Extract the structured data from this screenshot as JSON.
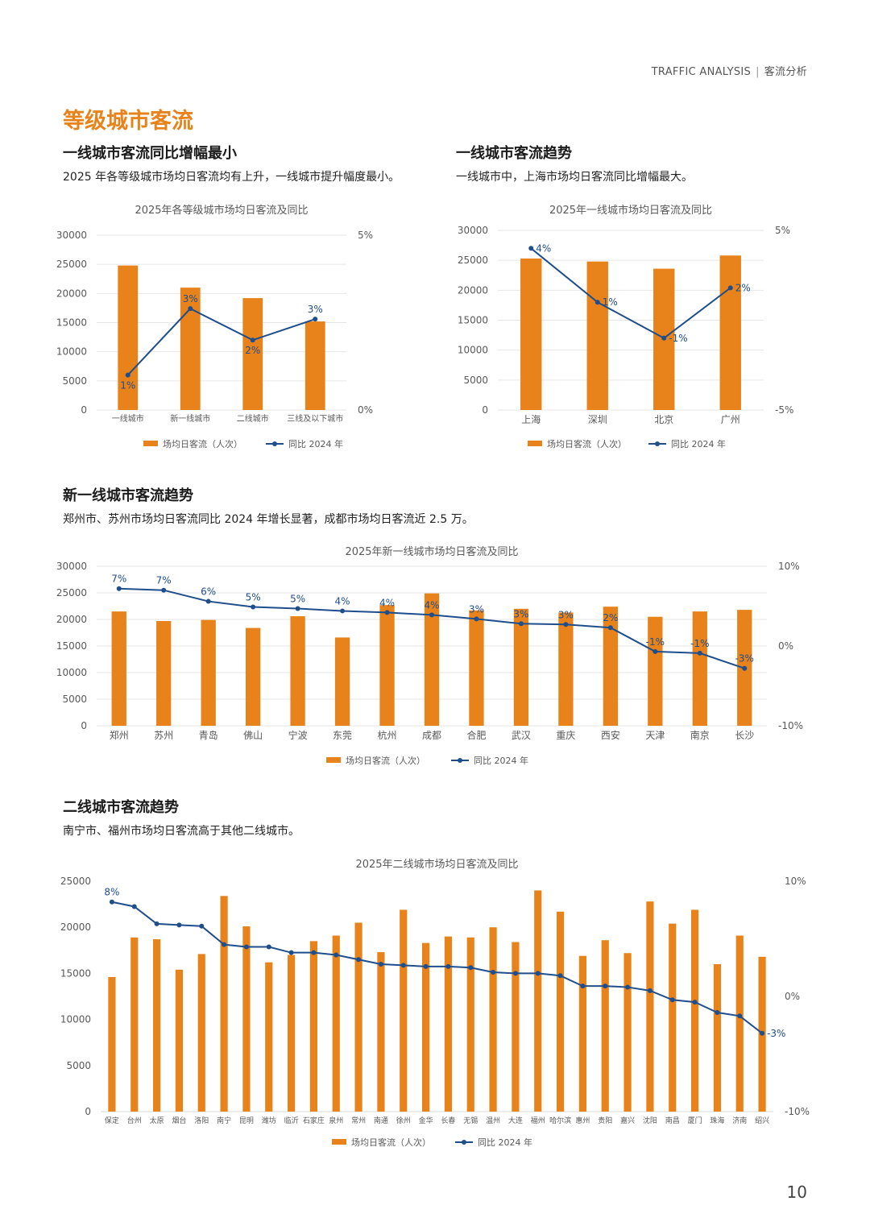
{
  "header": {
    "en": "TRAFFIC ANALYSIS",
    "sep": "|",
    "cn": "客流分析"
  },
  "page_title": "等级城市客流",
  "sections": {
    "tier": {
      "title": "一线城市客流同比增幅最小",
      "desc": "2025 年各等级城市场均日客流均有上升，一线城市提升幅度最小。"
    },
    "tier1": {
      "title": "一线城市客流趋势",
      "desc": "一线城市中，上海市场均日客流同比增幅最大。"
    },
    "newtier1": {
      "title": "新一线城市客流趋势",
      "desc": "郑州市、苏州市场均日客流同比 2024 年增长显著，成都市场均日客流近 2.5 万。"
    },
    "tier2": {
      "title": "二线城市客流趋势",
      "desc": "南宁市、福州市场均日客流高于其他二线城市。"
    }
  },
  "page_number": "10",
  "colors": {
    "bar": "#e8821a",
    "line": "#1f4e8c",
    "title_accent": "#e8821a",
    "grid": "#e6e6e6"
  },
  "chart_data": [
    {
      "id": "chart_tier",
      "type": "bar",
      "title": "2025年各等级城市场均日客流及同比",
      "categories": [
        "一线城市",
        "新一线城市",
        "二线城市",
        "三线及以下城市"
      ],
      "series": [
        {
          "name": "场均日客流（人次）",
          "type": "bar",
          "axis": "left",
          "values": [
            24800,
            21000,
            19200,
            15200
          ]
        },
        {
          "name": "同比 2024 年",
          "type": "line",
          "axis": "right",
          "values": [
            1.0,
            2.9,
            2.0,
            2.6
          ],
          "labels": [
            "1%",
            "3%",
            "2%",
            "3%"
          ],
          "label_pos": [
            "below",
            "above",
            "below",
            "above"
          ]
        }
      ],
      "ylim": [
        0,
        30000
      ],
      "yticks": [
        0,
        5000,
        10000,
        15000,
        20000,
        25000,
        30000
      ],
      "y2lim": [
        0,
        5
      ],
      "y2ticks": [
        {
          "v": 0,
          "t": "0%"
        },
        {
          "v": 5,
          "t": "5%"
        }
      ],
      "grid": true,
      "legend": "bottom"
    },
    {
      "id": "chart_tier1",
      "type": "bar",
      "title": "2025年一线城市场均日客流及同比",
      "categories": [
        "上海",
        "深圳",
        "北京",
        "广州"
      ],
      "series": [
        {
          "name": "场均日客流（人次）",
          "type": "bar",
          "axis": "left",
          "values": [
            25300,
            24800,
            23600,
            25800
          ]
        },
        {
          "name": "同比 2024 年",
          "type": "line",
          "axis": "right",
          "values": [
            4.0,
            1.0,
            -1.0,
            1.8
          ],
          "labels": [
            "4%",
            "1%",
            "-1%",
            "2%"
          ],
          "label_pos": [
            "right",
            "right",
            "right",
            "right"
          ]
        }
      ],
      "ylim": [
        0,
        30000
      ],
      "yticks": [
        0,
        5000,
        10000,
        15000,
        20000,
        25000,
        30000
      ],
      "y2lim": [
        -5,
        5
      ],
      "y2ticks": [
        {
          "v": -5,
          "t": "-5%"
        },
        {
          "v": 5,
          "t": "5%"
        }
      ],
      "grid": true,
      "legend": "bottom"
    },
    {
      "id": "chart_newtier1",
      "type": "bar",
      "title": "2025年新一线城市场均日客流及同比",
      "categories": [
        "郑州",
        "苏州",
        "青岛",
        "佛山",
        "宁波",
        "东莞",
        "杭州",
        "成都",
        "合肥",
        "武汉",
        "重庆",
        "西安",
        "天津",
        "南京",
        "长沙"
      ],
      "series": [
        {
          "name": "场均日客流（人次）",
          "type": "bar",
          "axis": "left",
          "values": [
            21500,
            19700,
            19900,
            18400,
            20600,
            16600,
            22700,
            24900,
            21700,
            22000,
            21300,
            22400,
            20500,
            21500,
            21800
          ]
        },
        {
          "name": "同比 2024 年",
          "type": "line",
          "axis": "right",
          "values": [
            7.2,
            7.0,
            5.6,
            4.9,
            4.7,
            4.4,
            4.2,
            3.9,
            3.4,
            2.8,
            2.7,
            2.3,
            -0.7,
            -0.9,
            -2.8
          ],
          "labels": [
            "7%",
            "7%",
            "6%",
            "5%",
            "5%",
            "4%",
            "4%",
            "4%",
            "3%",
            "3%",
            "3%",
            "2%",
            "-1%",
            "-1%",
            "-3%"
          ],
          "label_pos": [
            "above",
            "above",
            "above",
            "above",
            "above",
            "above",
            "above",
            "above",
            "above",
            "above",
            "above",
            "above",
            "above",
            "above",
            "above"
          ]
        }
      ],
      "ylim": [
        0,
        30000
      ],
      "yticks": [
        0,
        5000,
        10000,
        15000,
        20000,
        25000,
        30000
      ],
      "y2lim": [
        -10,
        10
      ],
      "y2ticks": [
        {
          "v": -10,
          "t": "-10%"
        },
        {
          "v": 0,
          "t": "0%"
        },
        {
          "v": 10,
          "t": "10%"
        }
      ],
      "grid": true,
      "legend": "bottom"
    },
    {
      "id": "chart_tier2",
      "type": "bar",
      "title": "2025年二线城市场均日客流及同比",
      "categories": [
        "保定",
        "台州",
        "太原",
        "烟台",
        "洛阳",
        "南宁",
        "昆明",
        "潍坊",
        "临沂",
        "石家庄",
        "泉州",
        "常州",
        "南通",
        "徐州",
        "金华",
        "长春",
        "无锡",
        "温州",
        "大连",
        "福州",
        "哈尔滨",
        "惠州",
        "贵阳",
        "嘉兴",
        "沈阳",
        "南昌",
        "厦门",
        "珠海",
        "济南",
        "绍兴"
      ],
      "series": [
        {
          "name": "场均日客流（人次）",
          "type": "bar",
          "axis": "left",
          "values": [
            14600,
            18900,
            18700,
            15400,
            17100,
            23400,
            20100,
            16200,
            17000,
            18500,
            19100,
            20500,
            17300,
            21900,
            18300,
            19000,
            18900,
            20000,
            18400,
            24000,
            21700,
            16900,
            18600,
            17200,
            22800,
            20400,
            21900,
            16000,
            19100,
            16800
          ]
        },
        {
          "name": "同比 2024 年",
          "type": "line",
          "axis": "right",
          "values": [
            8.2,
            7.8,
            6.3,
            6.2,
            6.1,
            4.5,
            4.3,
            4.3,
            3.8,
            3.8,
            3.6,
            3.2,
            2.8,
            2.7,
            2.6,
            2.6,
            2.5,
            2.1,
            2.0,
            2.0,
            1.8,
            0.9,
            0.9,
            0.8,
            0.5,
            -0.3,
            -0.5,
            -1.4,
            -1.7,
            -3.2
          ],
          "labels": [
            "8%",
            "",
            "",
            "",
            "",
            "",
            "",
            "",
            "",
            "",
            "",
            "",
            "",
            "",
            "",
            "",
            "",
            "",
            "",
            "",
            "",
            "",
            "",
            "",
            "",
            "",
            "",
            "",
            "",
            "-3%"
          ],
          "label_pos": [
            "above",
            "above",
            "above",
            "above",
            "above",
            "above",
            "above",
            "above",
            "above",
            "above",
            "above",
            "above",
            "above",
            "above",
            "above",
            "above",
            "above",
            "above",
            "above",
            "above",
            "above",
            "above",
            "above",
            "above",
            "above",
            "above",
            "above",
            "above",
            "above",
            "right"
          ]
        }
      ],
      "ylim": [
        0,
        25000
      ],
      "yticks": [
        0,
        5000,
        10000,
        15000,
        20000,
        25000
      ],
      "y2lim": [
        -10,
        10
      ],
      "y2ticks": [
        {
          "v": -10,
          "t": "-10%"
        },
        {
          "v": 0,
          "t": "0%"
        },
        {
          "v": 10,
          "t": "10%"
        }
      ],
      "grid": false,
      "legend": "bottom"
    }
  ]
}
